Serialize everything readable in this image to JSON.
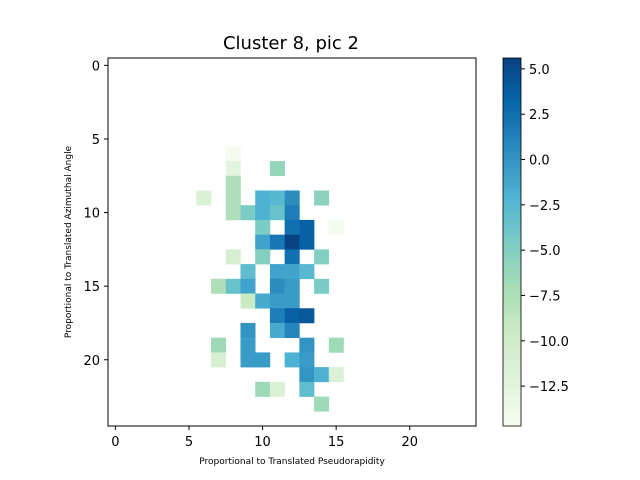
{
  "chart_data": {
    "type": "heatmap",
    "title": "Cluster 8, pic 2",
    "xlabel": "Proportional to Translated Pseudorapidity",
    "ylabel": "Proportional to Translated Azimuthal Angle",
    "grid_size": [
      25,
      25
    ],
    "x_ticks": [
      "0",
      "5",
      "10",
      "15",
      "20"
    ],
    "y_ticks": [
      "0",
      "5",
      "10",
      "15",
      "20"
    ],
    "colorbar": {
      "range": [
        -14.7,
        5.6
      ],
      "ticks": [
        "5.0",
        "2.5",
        "0.0",
        "−2.5",
        "−5.0",
        "−7.5",
        "−10.0",
        "−12.5"
      ],
      "tick_values": [
        5.0,
        2.5,
        0.0,
        -2.5,
        -5.0,
        -7.5,
        -10.0,
        -12.5
      ],
      "colormap": "GnBu",
      "colors": [
        "#f7fcf0",
        "#e0f3db",
        "#ccebc5",
        "#a8ddb5",
        "#7bccc4",
        "#4eb3d3",
        "#2b8cbe",
        "#0868ac",
        "#084081"
      ]
    },
    "cells": [
      {
        "x": 8,
        "y": 6,
        "v": -14.5
      },
      {
        "x": 8,
        "y": 7,
        "v": -12.5
      },
      {
        "x": 11,
        "y": 7,
        "v": -6.0
      },
      {
        "x": 8,
        "y": 8,
        "v": -7.5
      },
      {
        "x": 6,
        "y": 9,
        "v": -11.5
      },
      {
        "x": 8,
        "y": 9,
        "v": -7.5
      },
      {
        "x": 10,
        "y": 9,
        "v": -2.0
      },
      {
        "x": 11,
        "y": 9,
        "v": -2.5
      },
      {
        "x": 12,
        "y": 9,
        "v": 0.5
      },
      {
        "x": 14,
        "y": 9,
        "v": -5.5
      },
      {
        "x": 8,
        "y": 10,
        "v": -7.5
      },
      {
        "x": 9,
        "y": 10,
        "v": -4.5
      },
      {
        "x": 10,
        "y": 10,
        "v": -2.0
      },
      {
        "x": 11,
        "y": 10,
        "v": -3.5
      },
      {
        "x": 12,
        "y": 10,
        "v": 1.5
      },
      {
        "x": 10,
        "y": 11,
        "v": -4.5
      },
      {
        "x": 12,
        "y": 11,
        "v": 2.5
      },
      {
        "x": 13,
        "y": 11,
        "v": 3.5
      },
      {
        "x": 15,
        "y": 11,
        "v": -14.5
      },
      {
        "x": 10,
        "y": 12,
        "v": -1.0
      },
      {
        "x": 11,
        "y": 12,
        "v": 2.0
      },
      {
        "x": 12,
        "y": 12,
        "v": 5.5
      },
      {
        "x": 13,
        "y": 12,
        "v": 3.5
      },
      {
        "x": 8,
        "y": 13,
        "v": -11.0
      },
      {
        "x": 10,
        "y": 13,
        "v": -5.0
      },
      {
        "x": 12,
        "y": 13,
        "v": 2.5
      },
      {
        "x": 14,
        "y": 13,
        "v": -5.0
      },
      {
        "x": 9,
        "y": 14,
        "v": -3.0
      },
      {
        "x": 11,
        "y": 14,
        "v": -1.0
      },
      {
        "x": 12,
        "y": 14,
        "v": -1.0
      },
      {
        "x": 13,
        "y": 14,
        "v": -2.5
      },
      {
        "x": 7,
        "y": 15,
        "v": -7.5
      },
      {
        "x": 8,
        "y": 15,
        "v": -3.5
      },
      {
        "x": 9,
        "y": 15,
        "v": -1.0
      },
      {
        "x": 11,
        "y": 15,
        "v": 0.5
      },
      {
        "x": 12,
        "y": 15,
        "v": -0.5
      },
      {
        "x": 14,
        "y": 15,
        "v": -4.5
      },
      {
        "x": 9,
        "y": 16,
        "v": -9.5
      },
      {
        "x": 10,
        "y": 16,
        "v": -1.5
      },
      {
        "x": 11,
        "y": 16,
        "v": -0.5
      },
      {
        "x": 12,
        "y": 16,
        "v": -0.5
      },
      {
        "x": 11,
        "y": 17,
        "v": 1.5
      },
      {
        "x": 12,
        "y": 17,
        "v": 3.5
      },
      {
        "x": 13,
        "y": 17,
        "v": 4.0
      },
      {
        "x": 9,
        "y": 18,
        "v": 0.0
      },
      {
        "x": 11,
        "y": 18,
        "v": -1.5
      },
      {
        "x": 12,
        "y": 18,
        "v": 1.0
      },
      {
        "x": 7,
        "y": 19,
        "v": -6.5
      },
      {
        "x": 9,
        "y": 19,
        "v": -0.5
      },
      {
        "x": 13,
        "y": 19,
        "v": 0.0
      },
      {
        "x": 15,
        "y": 19,
        "v": -6.5
      },
      {
        "x": 7,
        "y": 20,
        "v": -11.0
      },
      {
        "x": 9,
        "y": 20,
        "v": -0.5
      },
      {
        "x": 10,
        "y": 20,
        "v": -0.5
      },
      {
        "x": 12,
        "y": 20,
        "v": -2.0
      },
      {
        "x": 13,
        "y": 20,
        "v": -0.5
      },
      {
        "x": 13,
        "y": 21,
        "v": 0.0
      },
      {
        "x": 14,
        "y": 21,
        "v": -2.0
      },
      {
        "x": 15,
        "y": 21,
        "v": -11.5
      },
      {
        "x": 10,
        "y": 22,
        "v": -6.5
      },
      {
        "x": 11,
        "y": 22,
        "v": -11.5
      },
      {
        "x": 13,
        "y": 22,
        "v": -3.0
      },
      {
        "x": 14,
        "y": 23,
        "v": -6.5
      }
    ]
  }
}
